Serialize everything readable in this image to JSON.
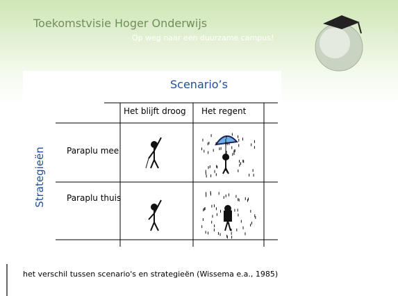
{
  "header": {
    "title": "Toekomstvisie Hoger Onderwijs",
    "subtitle": "Op weg naar een duurzame campus!"
  },
  "table": {
    "column_group": "Scenario’s",
    "row_group": "Strategieën",
    "columns": [
      "Het blijft droog",
      "Het regent"
    ],
    "rows": [
      "Paraplu mee",
      "Paraplu thuis"
    ]
  },
  "caption": "het verschil tussen scenario's en strategieën (Wissema e.a., 1985)"
}
